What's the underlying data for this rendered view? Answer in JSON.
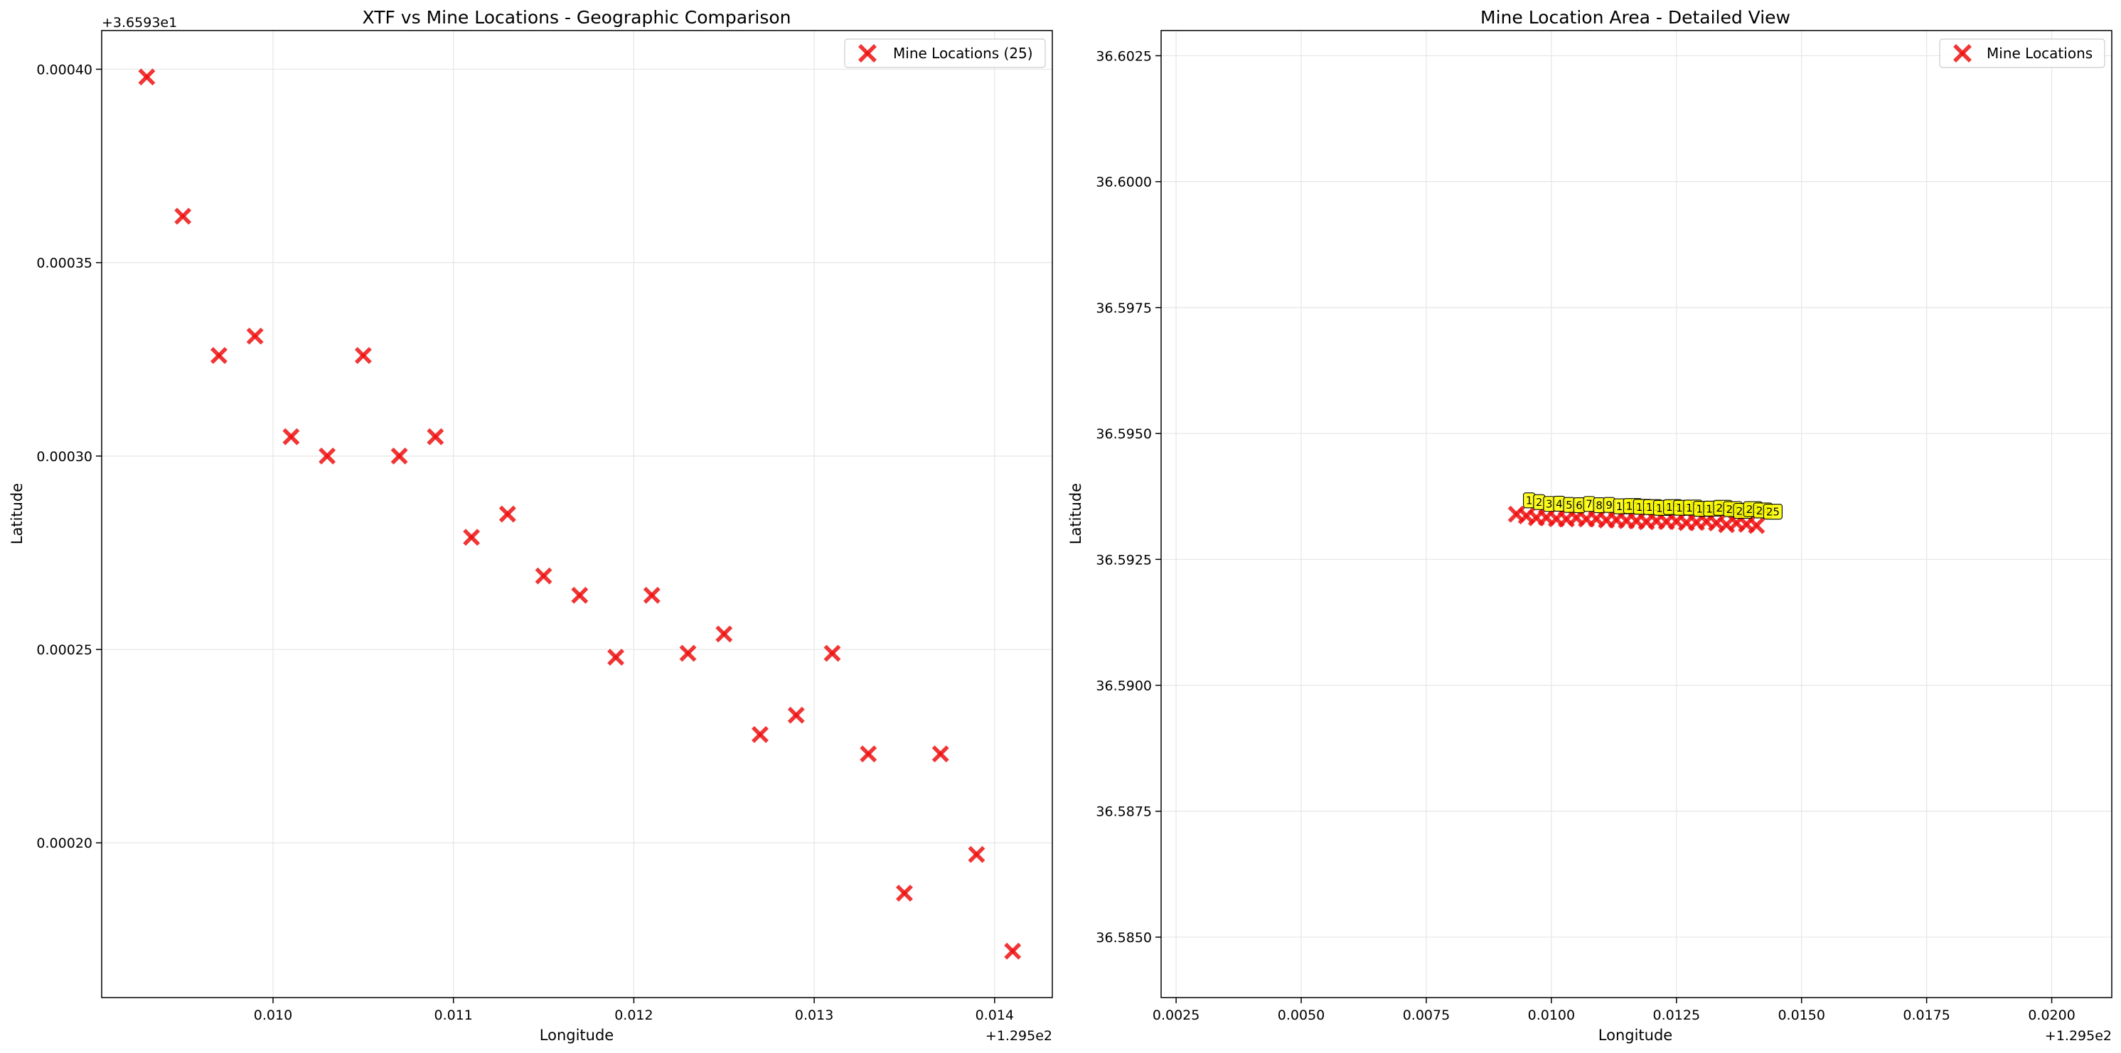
{
  "colors": {
    "marker": "#ee1111",
    "annotation_fill": "#ffff00",
    "grid": "#e6e6e6"
  },
  "chart_data": [
    {
      "type": "scatter",
      "title": "XTF vs Mine Locations - Geographic Comparison",
      "xlabel": "Longitude",
      "ylabel": "Latitude",
      "x_offset_label": "+1.295e2",
      "y_offset_label": "+3.6593e1",
      "x_offset": 129.5,
      "y_offset": 36.593,
      "xlim": [
        0.00905,
        0.01432
      ],
      "ylim": [
        0.00016,
        0.00041
      ],
      "xticks": [
        0.01,
        0.011,
        0.012,
        0.013,
        0.014
      ],
      "xtick_labels": [
        "0.010",
        "0.011",
        "0.012",
        "0.013",
        "0.014"
      ],
      "yticks": [
        0.0002,
        0.00025,
        0.0003,
        0.00035,
        0.0004
      ],
      "ytick_labels": [
        "0.00020",
        "0.00025",
        "0.00030",
        "0.00035",
        "0.00040"
      ],
      "grid": true,
      "legend_position": "top-right",
      "series": [
        {
          "name": "Mine Locations (25)",
          "marker": "x",
          "x": [
            0.0093,
            0.0095,
            0.0097,
            0.0099,
            0.0101,
            0.0103,
            0.0105,
            0.0107,
            0.0109,
            0.0111,
            0.0113,
            0.0115,
            0.0117,
            0.0119,
            0.0121,
            0.0123,
            0.0125,
            0.0127,
            0.0129,
            0.0131,
            0.0133,
            0.0135,
            0.0137,
            0.0139,
            0.0141
          ],
          "y": [
            0.000398,
            0.000362,
            0.000326,
            0.000331,
            0.000305,
            0.0003,
            0.000326,
            0.0003,
            0.000305,
            0.000279,
            0.000285,
            0.000269,
            0.000264,
            0.000248,
            0.000264,
            0.000249,
            0.000254,
            0.000228,
            0.000233,
            0.000249,
            0.000223,
            0.000187,
            0.000223,
            0.000197,
            0.000172
          ]
        }
      ]
    },
    {
      "type": "scatter",
      "title": "Mine Location Area - Detailed View",
      "xlabel": "Longitude",
      "ylabel": "Latitude",
      "x_offset_label": "+1.295e2",
      "x_offset": 129.5,
      "xlim": [
        0.0022,
        0.0212
      ],
      "ylim": [
        36.5838,
        36.603
      ],
      "xticks": [
        0.0025,
        0.005,
        0.0075,
        0.01,
        0.0125,
        0.015,
        0.0175,
        0.02
      ],
      "xtick_labels": [
        "0.0025",
        "0.0050",
        "0.0075",
        "0.0100",
        "0.0125",
        "0.0150",
        "0.0175",
        "0.0200"
      ],
      "yticks": [
        36.585,
        36.5875,
        36.59,
        36.5925,
        36.595,
        36.5975,
        36.6,
        36.6025
      ],
      "ytick_labels": [
        "36.5850",
        "36.5875",
        "36.5900",
        "36.5925",
        "36.5950",
        "36.5975",
        "36.6000",
        "36.6025"
      ],
      "grid": true,
      "legend_position": "top-right",
      "series": [
        {
          "name": "Mine Locations",
          "marker": "x",
          "x": [
            0.0093,
            0.0095,
            0.0097,
            0.0099,
            0.0101,
            0.0103,
            0.0105,
            0.0107,
            0.0109,
            0.0111,
            0.0113,
            0.0115,
            0.0117,
            0.0119,
            0.0121,
            0.0123,
            0.0125,
            0.0127,
            0.0129,
            0.0131,
            0.0133,
            0.0135,
            0.0137,
            0.0139,
            0.0141
          ],
          "y": [
            36.593398,
            36.593362,
            36.593326,
            36.593331,
            36.593305,
            36.5933,
            36.593326,
            36.5933,
            36.593305,
            36.593279,
            36.593285,
            36.593269,
            36.593264,
            36.593248,
            36.593264,
            36.593249,
            36.593254,
            36.593228,
            36.593233,
            36.593249,
            36.593223,
            36.593187,
            36.593223,
            36.593197,
            36.593172
          ]
        }
      ],
      "annotations": [
        "1",
        "2",
        "3",
        "4",
        "5",
        "6",
        "7",
        "8",
        "9",
        "10",
        "11",
        "12",
        "13",
        "14",
        "15",
        "16",
        "17",
        "18",
        "19",
        "20",
        "21",
        "22",
        "23",
        "24",
        "25"
      ]
    }
  ]
}
